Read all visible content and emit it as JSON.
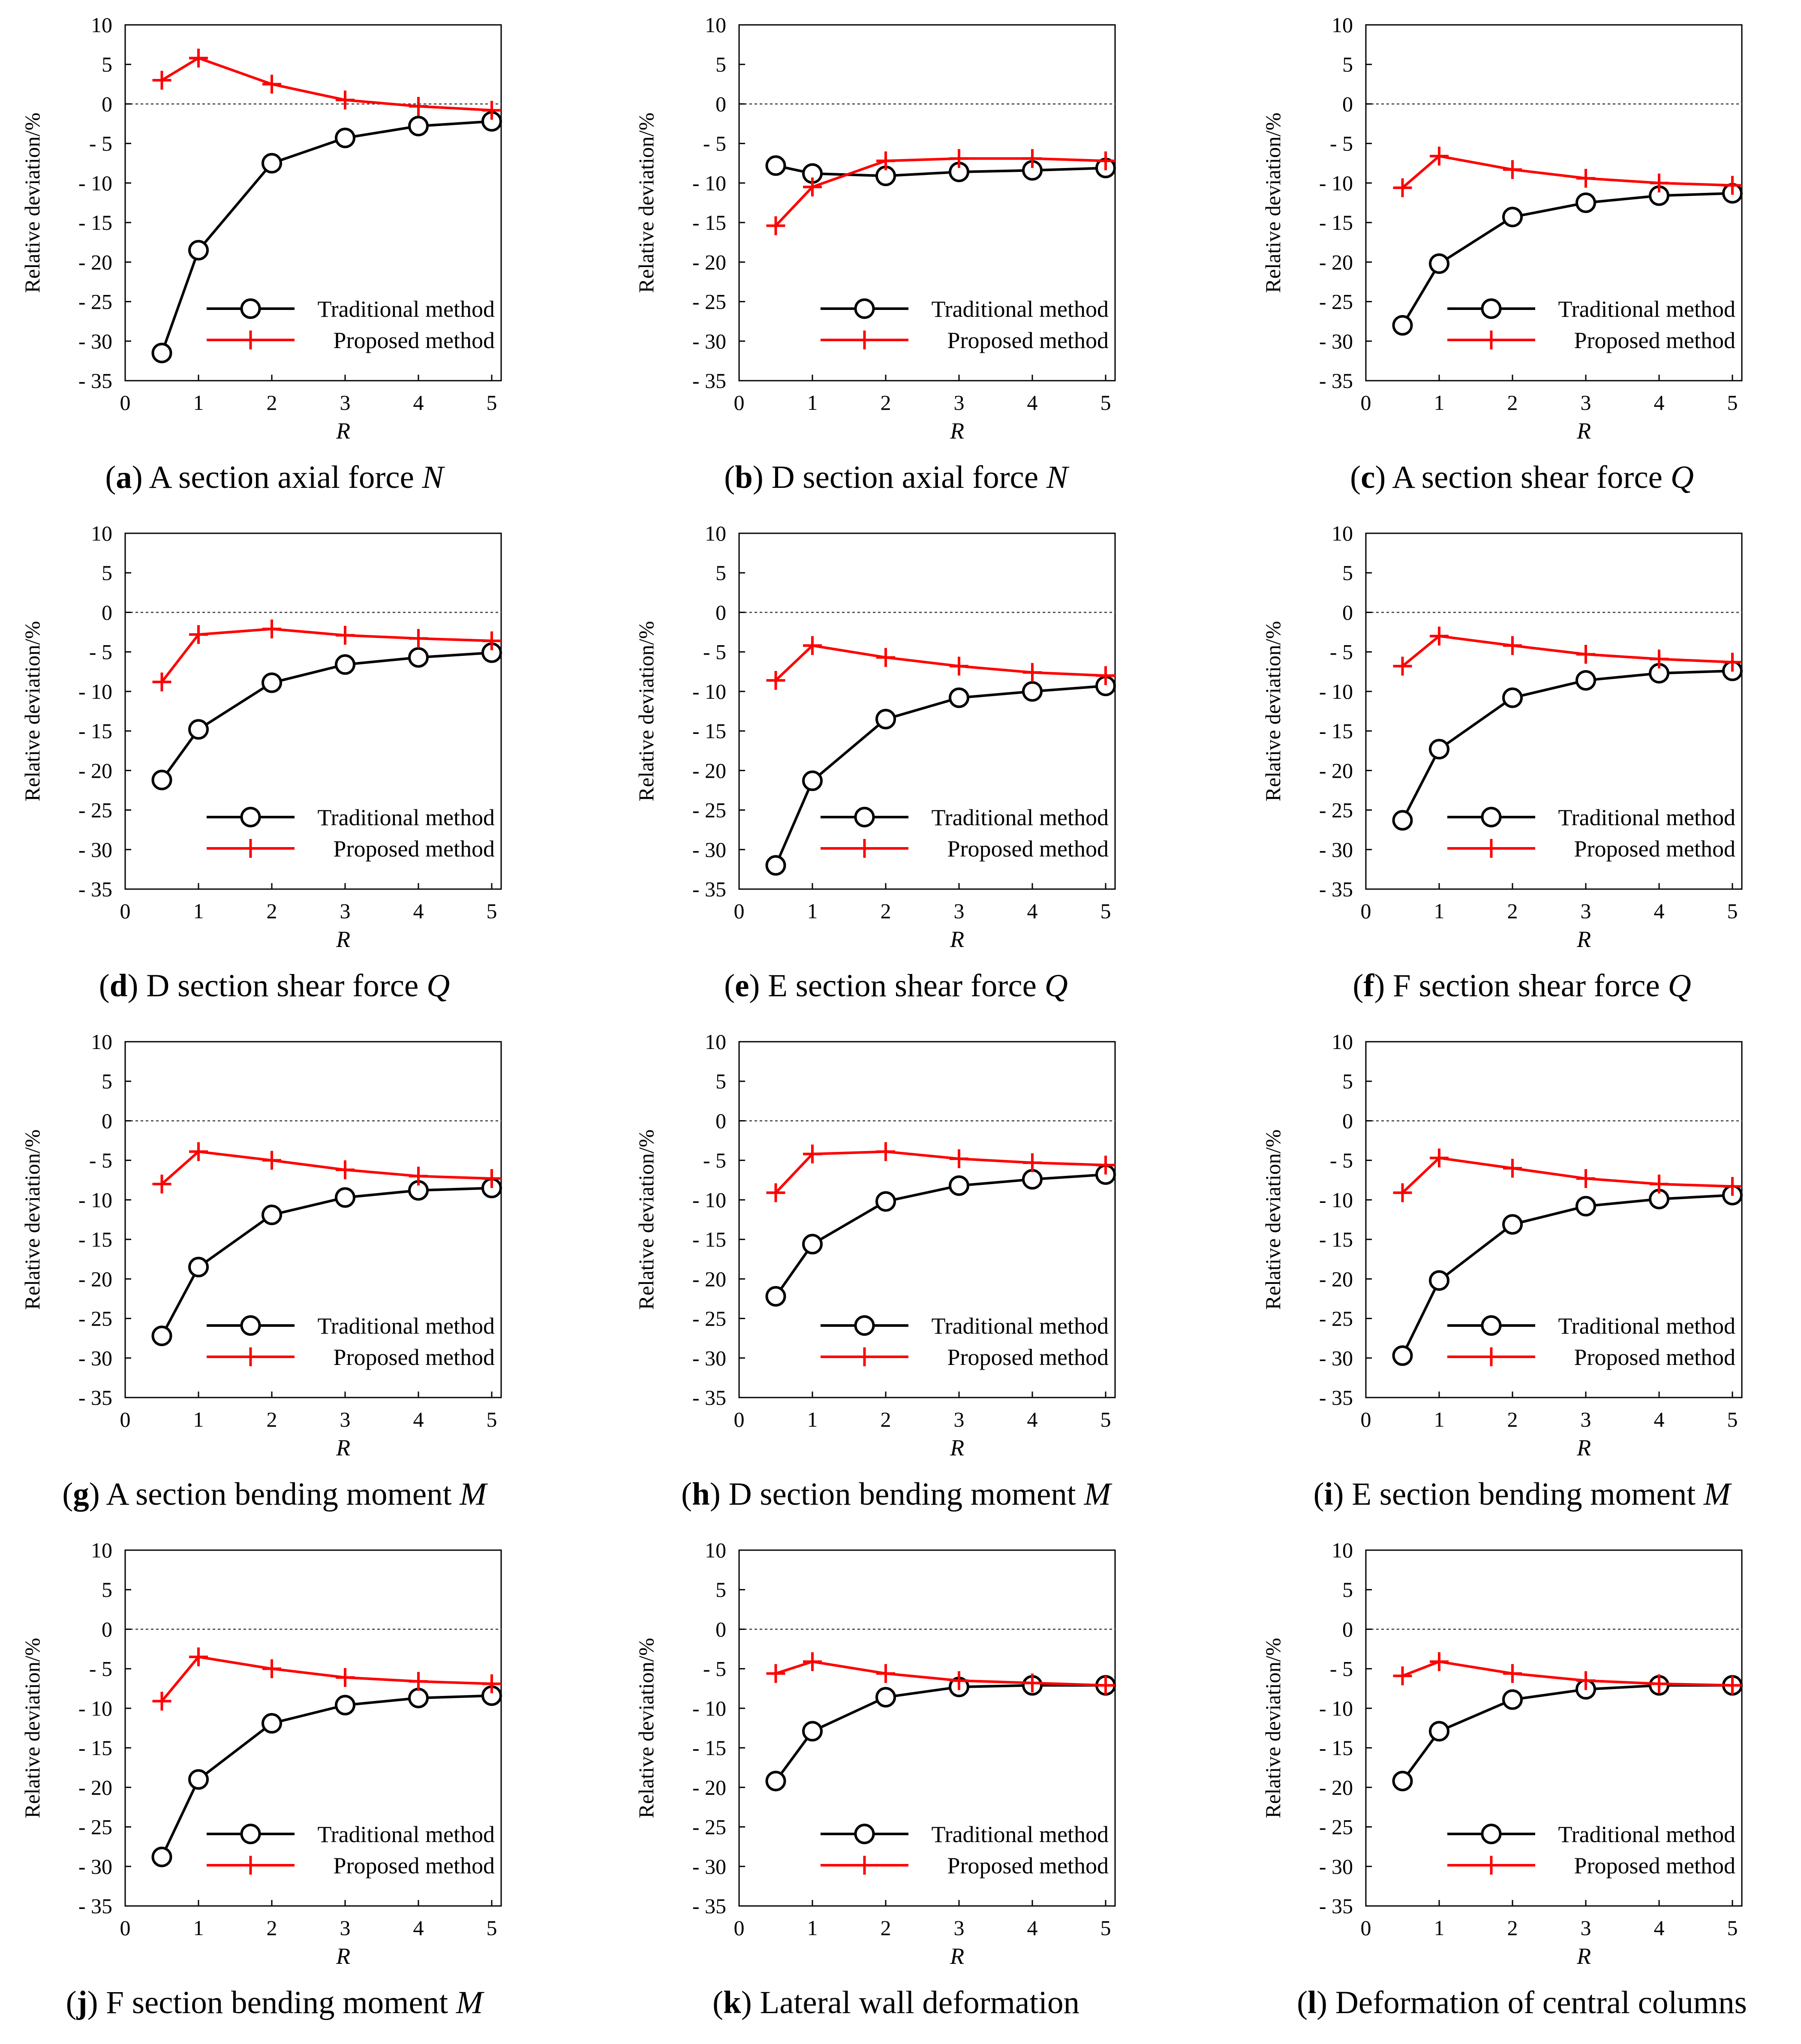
{
  "figure": {
    "legend": {
      "traditional": "Traditional method",
      "proposed": "Proposed method"
    },
    "colors": {
      "traditional": "#000000",
      "proposed": "#ff0000",
      "zero_line": "#555555"
    }
  },
  "chart_data": [
    {
      "type": "line",
      "caption": {
        "letter": "a",
        "text": " A section axial force ",
        "symbol": "N"
      },
      "xlabel": "R",
      "ylabel": "Relative deviation/%",
      "x_ticks": [
        0,
        1,
        2,
        3,
        4,
        5
      ],
      "y_ticks": [
        10,
        5,
        0,
        -5,
        -10,
        -15,
        -20,
        -25,
        -30,
        -35
      ],
      "y_tick_labels": [
        "10",
        "5",
        "0",
        "- 5",
        "- 10",
        "- 15",
        "- 20",
        "- 25",
        "- 30",
        "- 35"
      ],
      "xlim": [
        0,
        5.25
      ],
      "ylim": [
        -35,
        10
      ],
      "legend_position": "lower-right",
      "x": [
        0.5,
        1,
        2,
        3,
        4,
        5
      ],
      "series": [
        {
          "name": "Traditional method",
          "values": [
            -31.5,
            -18.5,
            -7.5,
            -4.3,
            -2.8,
            -2.2
          ]
        },
        {
          "name": "Proposed method",
          "values": [
            3.0,
            5.8,
            2.5,
            0.5,
            -0.3,
            -0.8
          ]
        }
      ]
    },
    {
      "type": "line",
      "caption": {
        "letter": "b",
        "text": " D section axial force ",
        "symbol": "N"
      },
      "xlabel": "R",
      "ylabel": "Relative deviation/%",
      "x_ticks": [
        0,
        1,
        2,
        3,
        4,
        5
      ],
      "y_ticks": [
        10,
        5,
        0,
        -5,
        -10,
        -15,
        -20,
        -25,
        -30,
        -35
      ],
      "y_tick_labels": [
        "10",
        "5",
        "0",
        "- 5",
        "- 10",
        "- 15",
        "- 20",
        "- 25",
        "- 30",
        "- 35"
      ],
      "xlim": [
        0,
        5.25
      ],
      "ylim": [
        -35,
        10
      ],
      "legend_position": "lower-right",
      "x": [
        0.5,
        1,
        2,
        3,
        4,
        5
      ],
      "series": [
        {
          "name": "Traditional method",
          "values": [
            -7.8,
            -8.8,
            -9.1,
            -8.6,
            -8.4,
            -8.1
          ]
        },
        {
          "name": "Proposed method",
          "values": [
            -15.4,
            -10.5,
            -7.2,
            -6.9,
            -6.9,
            -7.2
          ]
        }
      ]
    },
    {
      "type": "line",
      "caption": {
        "letter": "c",
        "text": " A section shear force ",
        "symbol": "Q"
      },
      "xlabel": "R",
      "ylabel": "Relative deviation/%",
      "x_ticks": [
        0,
        1,
        2,
        3,
        4,
        5
      ],
      "y_ticks": [
        10,
        5,
        0,
        -5,
        -10,
        -15,
        -20,
        -25,
        -30,
        -35
      ],
      "y_tick_labels": [
        "10",
        "5",
        "0",
        "- 5",
        "- 10",
        "- 15",
        "- 20",
        "- 25",
        "- 30",
        "- 35"
      ],
      "xlim": [
        0,
        5.25
      ],
      "ylim": [
        -35,
        10
      ],
      "legend_position": "lower-right",
      "x": [
        0.5,
        1,
        2,
        3,
        4,
        5
      ],
      "series": [
        {
          "name": "Traditional method",
          "values": [
            -28.0,
            -20.2,
            -14.3,
            -12.5,
            -11.6,
            -11.3
          ]
        },
        {
          "name": "Proposed method",
          "values": [
            -10.6,
            -6.6,
            -8.3,
            -9.4,
            -10.0,
            -10.3
          ]
        }
      ]
    },
    {
      "type": "line",
      "caption": {
        "letter": "d",
        "text": " D section shear force ",
        "symbol": "Q"
      },
      "xlabel": "R",
      "ylabel": "Relative deviation/%",
      "x_ticks": [
        0,
        1,
        2,
        3,
        4,
        5
      ],
      "y_ticks": [
        10,
        5,
        0,
        -5,
        -10,
        -15,
        -20,
        -25,
        -30,
        -35
      ],
      "y_tick_labels": [
        "10",
        "5",
        "0",
        "- 5",
        "- 10",
        "- 15",
        "- 20",
        "- 25",
        "- 30",
        "- 35"
      ],
      "xlim": [
        0,
        5.25
      ],
      "ylim": [
        -35,
        10
      ],
      "legend_position": "lower-right",
      "x": [
        0.5,
        1,
        2,
        3,
        4,
        5
      ],
      "series": [
        {
          "name": "Traditional method",
          "values": [
            -21.2,
            -14.8,
            -8.9,
            -6.6,
            -5.7,
            -5.1
          ]
        },
        {
          "name": "Proposed method",
          "values": [
            -8.8,
            -2.8,
            -2.1,
            -2.9,
            -3.3,
            -3.6
          ]
        }
      ]
    },
    {
      "type": "line",
      "caption": {
        "letter": "e",
        "text": " E section shear force ",
        "symbol": "Q"
      },
      "xlabel": "R",
      "ylabel": "Relative deviation/%",
      "x_ticks": [
        0,
        1,
        2,
        3,
        4,
        5
      ],
      "y_ticks": [
        10,
        5,
        0,
        -5,
        -10,
        -15,
        -20,
        -25,
        -30,
        -35
      ],
      "y_tick_labels": [
        "10",
        "5",
        "0",
        "- 5",
        "- 10",
        "- 15",
        "- 20",
        "- 25",
        "- 30",
        "- 35"
      ],
      "xlim": [
        0,
        5.25
      ],
      "ylim": [
        -35,
        10
      ],
      "legend_position": "lower-right",
      "x": [
        0.5,
        1,
        2,
        3,
        4,
        5
      ],
      "series": [
        {
          "name": "Traditional method",
          "values": [
            -32.0,
            -21.3,
            -13.5,
            -10.8,
            -10.0,
            -9.3
          ]
        },
        {
          "name": "Proposed method",
          "values": [
            -8.6,
            -4.2,
            -5.7,
            -6.8,
            -7.6,
            -8.0
          ]
        }
      ]
    },
    {
      "type": "line",
      "caption": {
        "letter": "f",
        "text": " F section shear force ",
        "symbol": "Q"
      },
      "xlabel": "R",
      "ylabel": "Relative deviation/%",
      "x_ticks": [
        0,
        1,
        2,
        3,
        4,
        5
      ],
      "y_ticks": [
        10,
        5,
        0,
        -5,
        -10,
        -15,
        -20,
        -25,
        -30,
        -35
      ],
      "y_tick_labels": [
        "10",
        "5",
        "0",
        "- 5",
        "- 10",
        "- 15",
        "- 20",
        "- 25",
        "- 30",
        "- 35"
      ],
      "xlim": [
        0,
        5.25
      ],
      "ylim": [
        -35,
        10
      ],
      "legend_position": "lower-right",
      "x": [
        0.5,
        1,
        2,
        3,
        4,
        5
      ],
      "series": [
        {
          "name": "Traditional method",
          "values": [
            -26.3,
            -17.3,
            -10.8,
            -8.6,
            -7.7,
            -7.4
          ]
        },
        {
          "name": "Proposed method",
          "values": [
            -6.8,
            -3.0,
            -4.2,
            -5.3,
            -5.9,
            -6.3
          ]
        }
      ]
    },
    {
      "type": "line",
      "caption": {
        "letter": "g",
        "text": " A section bending moment ",
        "symbol": "M"
      },
      "xlabel": "R",
      "ylabel": "Relative deviation/%",
      "x_ticks": [
        0,
        1,
        2,
        3,
        4,
        5
      ],
      "y_ticks": [
        10,
        5,
        0,
        -5,
        -10,
        -15,
        -20,
        -25,
        -30,
        -35
      ],
      "y_tick_labels": [
        "10",
        "5",
        "0",
        "- 5",
        "- 10",
        "- 15",
        "- 20",
        "- 25",
        "- 30",
        "- 35"
      ],
      "xlim": [
        0,
        5.25
      ],
      "ylim": [
        -35,
        10
      ],
      "legend_position": "lower-right",
      "x": [
        0.5,
        1,
        2,
        3,
        4,
        5
      ],
      "series": [
        {
          "name": "Traditional method",
          "values": [
            -27.2,
            -18.5,
            -11.9,
            -9.7,
            -8.8,
            -8.5
          ]
        },
        {
          "name": "Proposed method",
          "values": [
            -8.0,
            -3.9,
            -5.0,
            -6.2,
            -7.0,
            -7.3
          ]
        }
      ]
    },
    {
      "type": "line",
      "caption": {
        "letter": "h",
        "text": " D section bending moment ",
        "symbol": "M"
      },
      "xlabel": "R",
      "ylabel": "Relative deviation/%",
      "x_ticks": [
        0,
        1,
        2,
        3,
        4,
        5
      ],
      "y_ticks": [
        10,
        5,
        0,
        -5,
        -10,
        -15,
        -20,
        -25,
        -30,
        -35
      ],
      "y_tick_labels": [
        "10",
        "5",
        "0",
        "- 5",
        "- 10",
        "- 15",
        "- 20",
        "- 25",
        "- 30",
        "- 35"
      ],
      "xlim": [
        0,
        5.25
      ],
      "ylim": [
        -35,
        10
      ],
      "legend_position": "lower-right",
      "x": [
        0.5,
        1,
        2,
        3,
        4,
        5
      ],
      "series": [
        {
          "name": "Traditional method",
          "values": [
            -22.2,
            -15.6,
            -10.2,
            -8.2,
            -7.4,
            -6.8
          ]
        },
        {
          "name": "Proposed method",
          "values": [
            -9.1,
            -4.2,
            -3.9,
            -4.8,
            -5.3,
            -5.6
          ]
        }
      ]
    },
    {
      "type": "line",
      "caption": {
        "letter": "i",
        "text": " E section bending moment ",
        "symbol": "M"
      },
      "xlabel": "R",
      "ylabel": "Relative deviation/%",
      "x_ticks": [
        0,
        1,
        2,
        3,
        4,
        5
      ],
      "y_ticks": [
        10,
        5,
        0,
        -5,
        -10,
        -15,
        -20,
        -25,
        -30,
        -35
      ],
      "y_tick_labels": [
        "10",
        "5",
        "0",
        "- 5",
        "- 10",
        "- 15",
        "- 20",
        "- 25",
        "- 30",
        "- 35"
      ],
      "xlim": [
        0,
        5.25
      ],
      "ylim": [
        -35,
        10
      ],
      "legend_position": "lower-right",
      "x": [
        0.5,
        1,
        2,
        3,
        4,
        5
      ],
      "series": [
        {
          "name": "Traditional method",
          "values": [
            -29.7,
            -20.2,
            -13.1,
            -10.8,
            -9.9,
            -9.4
          ]
        },
        {
          "name": "Proposed method",
          "values": [
            -9.1,
            -4.7,
            -6.0,
            -7.3,
            -8.0,
            -8.3
          ]
        }
      ]
    },
    {
      "type": "line",
      "caption": {
        "letter": "j",
        "text": " F section bending moment ",
        "symbol": "M"
      },
      "xlabel": "R",
      "ylabel": "Relative deviation/%",
      "x_ticks": [
        0,
        1,
        2,
        3,
        4,
        5
      ],
      "y_ticks": [
        10,
        5,
        0,
        -5,
        -10,
        -15,
        -20,
        -25,
        -30,
        -35
      ],
      "y_tick_labels": [
        "10",
        "5",
        "0",
        "- 5",
        "- 10",
        "- 15",
        "- 20",
        "- 25",
        "- 30",
        "- 35"
      ],
      "xlim": [
        0,
        5.25
      ],
      "ylim": [
        -35,
        10
      ],
      "legend_position": "lower-right",
      "x": [
        0.5,
        1,
        2,
        3,
        4,
        5
      ],
      "series": [
        {
          "name": "Traditional method",
          "values": [
            -28.8,
            -19.0,
            -11.9,
            -9.6,
            -8.7,
            -8.4
          ]
        },
        {
          "name": "Proposed method",
          "values": [
            -9.1,
            -3.5,
            -5.0,
            -6.1,
            -6.6,
            -6.9
          ]
        }
      ]
    },
    {
      "type": "line",
      "caption": {
        "letter": "k",
        "text": " Lateral wall deformation",
        "symbol": ""
      },
      "xlabel": "R",
      "ylabel": "Relative deviation/%",
      "x_ticks": [
        0,
        1,
        2,
        3,
        4,
        5
      ],
      "y_ticks": [
        10,
        5,
        0,
        -5,
        -10,
        -15,
        -20,
        -25,
        -30,
        -35
      ],
      "y_tick_labels": [
        "10",
        "5",
        "0",
        "- 5",
        "- 10",
        "- 15",
        "- 20",
        "- 25",
        "- 30",
        "- 35"
      ],
      "xlim": [
        0,
        5.25
      ],
      "ylim": [
        -35,
        10
      ],
      "legend_position": "lower-right",
      "x": [
        0.5,
        1,
        2,
        3,
        4,
        5
      ],
      "series": [
        {
          "name": "Traditional method",
          "values": [
            -19.2,
            -12.9,
            -8.6,
            -7.3,
            -7.1,
            -7.1
          ]
        },
        {
          "name": "Proposed method",
          "values": [
            -5.6,
            -4.1,
            -5.6,
            -6.5,
            -6.8,
            -7.1
          ]
        }
      ]
    },
    {
      "type": "line",
      "caption": {
        "letter": "l",
        "text": " Deformation of central columns",
        "symbol": ""
      },
      "xlabel": "R",
      "ylabel": "Relative deviation/%",
      "x_ticks": [
        0,
        1,
        2,
        3,
        4,
        5
      ],
      "y_ticks": [
        10,
        5,
        0,
        -5,
        -10,
        -15,
        -20,
        -25,
        -30,
        -35
      ],
      "y_tick_labels": [
        "10",
        "5",
        "0",
        "- 5",
        "- 10",
        "- 15",
        "- 20",
        "- 25",
        "- 30",
        "- 35"
      ],
      "xlim": [
        0,
        5.25
      ],
      "ylim": [
        -35,
        10
      ],
      "legend_position": "lower-right",
      "x": [
        0.5,
        1,
        2,
        3,
        4,
        5
      ],
      "series": [
        {
          "name": "Traditional method",
          "values": [
            -19.2,
            -12.9,
            -8.9,
            -7.6,
            -7.1,
            -7.1
          ]
        },
        {
          "name": "Proposed method",
          "values": [
            -5.9,
            -4.1,
            -5.6,
            -6.5,
            -6.9,
            -7.1
          ]
        }
      ]
    }
  ]
}
